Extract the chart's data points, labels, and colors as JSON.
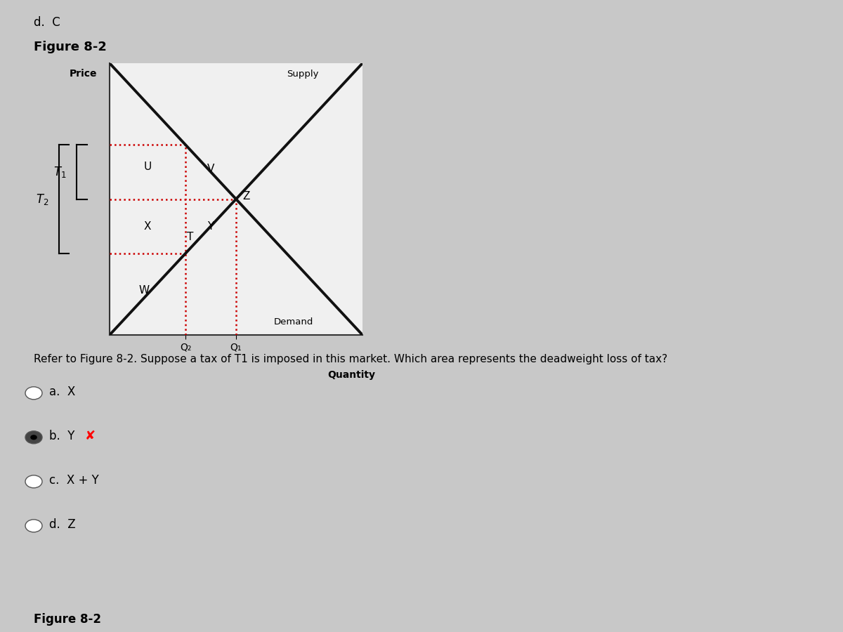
{
  "figure_title": "Figure 8-2",
  "figure_title_bottom": "Figure 8-2",
  "top_text": "d.  C",
  "page_bg_top": "#b0b0b0",
  "page_bg_main": "#c8c8c8",
  "chart_bg": "#f0f0f0",
  "ylabel": "Price",
  "xlabel": "Quantity",
  "supply_label": "Supply",
  "demand_label": "Demand",
  "q1_label": "Q₁",
  "q2_label": "Q₂",
  "t1_label": "T₁",
  "t2_label": "T₂",
  "question_text": "Refer to Figure 8-2. Suppose a tax of T1 is imposed in this market. Which area represents the deadweight loss of tax?",
  "choice_a": "a.  X",
  "choice_b": "b.  Y",
  "choice_c": "c.  X + Y",
  "choice_d": "d.  Z",
  "selected_choice": 1,
  "grid_color": "#cc0000",
  "line_color": "#111111",
  "x_min": 0,
  "x_max": 10,
  "y_min": 0,
  "y_max": 10,
  "q_eq": 5.0,
  "p_eq": 5.0,
  "q2": 3.0,
  "p_buyers": 7.0,
  "p_sellers": 3.0
}
